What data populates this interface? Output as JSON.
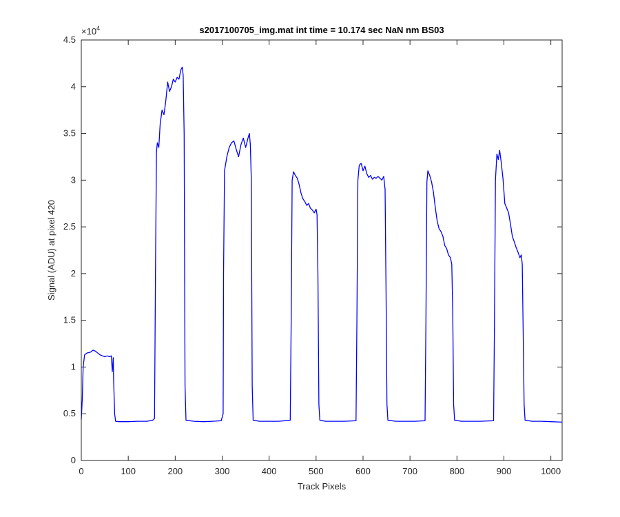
{
  "chart_data": {
    "type": "line",
    "title": "s2017100705_img.mat int time = 10.174 sec  NaN nm BS03",
    "xlabel": "Track Pixels",
    "ylabel": "Signal (ADU) at pixel 420",
    "xlim": [
      0,
      1024
    ],
    "ylim": [
      0,
      45000
    ],
    "x_ticks": [
      0,
      100,
      200,
      300,
      400,
      500,
      600,
      700,
      800,
      900,
      1000
    ],
    "x_tick_labels": [
      "0",
      "100",
      "200",
      "300",
      "400",
      "500",
      "600",
      "700",
      "800",
      "900",
      "1000"
    ],
    "y_ticks": [
      0,
      5000,
      10000,
      15000,
      20000,
      25000,
      30000,
      35000,
      40000,
      45000
    ],
    "y_tick_labels": [
      "0",
      "0.5",
      "1",
      "1.5",
      "2",
      "2.5",
      "3",
      "3.5",
      "4",
      "4.5"
    ],
    "y_multiplier_base": "×10",
    "y_multiplier_exp": "4",
    "grid": false,
    "series": [
      {
        "color": "#0000ff",
        "points": [
          [
            0,
            4400
          ],
          [
            2,
            6500
          ],
          [
            4,
            10000
          ],
          [
            7,
            11300
          ],
          [
            12,
            11500
          ],
          [
            20,
            11600
          ],
          [
            25,
            11800
          ],
          [
            30,
            11700
          ],
          [
            35,
            11500
          ],
          [
            40,
            11300
          ],
          [
            45,
            11200
          ],
          [
            50,
            11100
          ],
          [
            55,
            11200
          ],
          [
            60,
            11100
          ],
          [
            64,
            11200
          ],
          [
            66,
            9500
          ],
          [
            68,
            11000
          ],
          [
            69,
            8500
          ],
          [
            71,
            5000
          ],
          [
            73,
            4200
          ],
          [
            80,
            4150
          ],
          [
            100,
            4150
          ],
          [
            120,
            4200
          ],
          [
            140,
            4200
          ],
          [
            152,
            4300
          ],
          [
            156,
            4500
          ],
          [
            158,
            20000
          ],
          [
            160,
            33000
          ],
          [
            162,
            34000
          ],
          [
            165,
            33500
          ],
          [
            168,
            36000
          ],
          [
            172,
            37500
          ],
          [
            176,
            37000
          ],
          [
            180,
            38500
          ],
          [
            184,
            40500
          ],
          [
            188,
            39500
          ],
          [
            192,
            40000
          ],
          [
            196,
            40800
          ],
          [
            200,
            40500
          ],
          [
            204,
            41000
          ],
          [
            208,
            40800
          ],
          [
            212,
            41800
          ],
          [
            215,
            42100
          ],
          [
            217,
            41200
          ],
          [
            219,
            35000
          ],
          [
            221,
            8000
          ],
          [
            223,
            4300
          ],
          [
            240,
            4200
          ],
          [
            260,
            4150
          ],
          [
            280,
            4200
          ],
          [
            298,
            4250
          ],
          [
            302,
            5000
          ],
          [
            303,
            20000
          ],
          [
            305,
            31000
          ],
          [
            310,
            32500
          ],
          [
            315,
            33500
          ],
          [
            320,
            34000
          ],
          [
            325,
            34200
          ],
          [
            330,
            33300
          ],
          [
            335,
            32500
          ],
          [
            340,
            33800
          ],
          [
            345,
            34500
          ],
          [
            350,
            33500
          ],
          [
            355,
            34500
          ],
          [
            358,
            35000
          ],
          [
            360,
            33800
          ],
          [
            362,
            30000
          ],
          [
            364,
            8000
          ],
          [
            366,
            4300
          ],
          [
            380,
            4200
          ],
          [
            400,
            4200
          ],
          [
            420,
            4200
          ],
          [
            445,
            4300
          ],
          [
            447,
            15000
          ],
          [
            449,
            30000
          ],
          [
            452,
            30900
          ],
          [
            456,
            30500
          ],
          [
            460,
            30200
          ],
          [
            464,
            29500
          ],
          [
            468,
            28600
          ],
          [
            472,
            28000
          ],
          [
            476,
            27700
          ],
          [
            480,
            27300
          ],
          [
            484,
            27500
          ],
          [
            488,
            27000
          ],
          [
            492,
            26800
          ],
          [
            496,
            26500
          ],
          [
            500,
            26900
          ],
          [
            502,
            26300
          ],
          [
            504,
            20000
          ],
          [
            506,
            6000
          ],
          [
            508,
            4300
          ],
          [
            520,
            4200
          ],
          [
            540,
            4200
          ],
          [
            560,
            4200
          ],
          [
            585,
            4250
          ],
          [
            587,
            15000
          ],
          [
            589,
            30000
          ],
          [
            592,
            31600
          ],
          [
            596,
            31800
          ],
          [
            600,
            31000
          ],
          [
            604,
            31500
          ],
          [
            608,
            30700
          ],
          [
            612,
            30300
          ],
          [
            616,
            30500
          ],
          [
            620,
            30100
          ],
          [
            624,
            30300
          ],
          [
            628,
            30200
          ],
          [
            632,
            30400
          ],
          [
            636,
            30200
          ],
          [
            640,
            30000
          ],
          [
            644,
            30400
          ],
          [
            647,
            29000
          ],
          [
            649,
            18000
          ],
          [
            651,
            6000
          ],
          [
            653,
            4300
          ],
          [
            670,
            4200
          ],
          [
            690,
            4200
          ],
          [
            710,
            4200
          ],
          [
            732,
            4250
          ],
          [
            734,
            15000
          ],
          [
            736,
            29800
          ],
          [
            738,
            31000
          ],
          [
            742,
            30500
          ],
          [
            746,
            29800
          ],
          [
            750,
            28700
          ],
          [
            754,
            27000
          ],
          [
            758,
            25600
          ],
          [
            762,
            24800
          ],
          [
            766,
            24500
          ],
          [
            770,
            24000
          ],
          [
            774,
            23000
          ],
          [
            778,
            22700
          ],
          [
            782,
            22000
          ],
          [
            786,
            21700
          ],
          [
            789,
            21000
          ],
          [
            791,
            16000
          ],
          [
            793,
            6000
          ],
          [
            795,
            4300
          ],
          [
            810,
            4200
          ],
          [
            830,
            4200
          ],
          [
            850,
            4200
          ],
          [
            878,
            4250
          ],
          [
            880,
            15000
          ],
          [
            882,
            30000
          ],
          [
            885,
            32800
          ],
          [
            888,
            32200
          ],
          [
            891,
            33200
          ],
          [
            894,
            32000
          ],
          [
            898,
            30200
          ],
          [
            902,
            27500
          ],
          [
            906,
            27000
          ],
          [
            910,
            26500
          ],
          [
            914,
            25300
          ],
          [
            918,
            24000
          ],
          [
            922,
            23400
          ],
          [
            926,
            22800
          ],
          [
            930,
            22300
          ],
          [
            934,
            21700
          ],
          [
            937,
            22000
          ],
          [
            939,
            21000
          ],
          [
            941,
            14000
          ],
          [
            943,
            6000
          ],
          [
            945,
            4300
          ],
          [
            960,
            4200
          ],
          [
            980,
            4200
          ],
          [
            1000,
            4150
          ],
          [
            1024,
            4100
          ]
        ]
      }
    ]
  }
}
